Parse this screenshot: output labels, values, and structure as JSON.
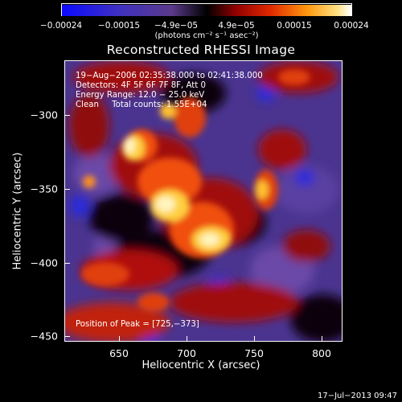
{
  "colorbar": {
    "tick_labels": [
      "−0.00024",
      "−0.00015",
      "−4.9e−05",
      "4.9e−05",
      "0.00015",
      "0.00024"
    ],
    "units": "(photons cm⁻² s⁻¹ asec⁻²)"
  },
  "title": "Reconstructed RHESSI Image",
  "info": {
    "line1": "19−Aug−2006 02:35:38.000 to 02:41:38.000",
    "line2": "Detectors: 4F 5F 6F 7F 8F, Att 0",
    "line3": "Energy Range: 12.0 − 25.0 keV",
    "line4": "Clean     Total counts: 1.55E+04",
    "peak": "Position of Peak = [725,−373]"
  },
  "axes": {
    "xlabel": "Heliocentric X (arcsec)",
    "ylabel": "Heliocentric Y (arcsec)",
    "xticks": [
      "650",
      "700",
      "750",
      "800"
    ],
    "yticks": [
      "−300",
      "−350",
      "−400",
      "−450"
    ]
  },
  "timestamp": "17−Jul−2013 09:47",
  "colors": {
    "colormap": [
      "#1a1aff",
      "#3a2a9a",
      "#5a3a8a",
      "#000000",
      "#8a0000",
      "#e03000",
      "#ff9000",
      "#ffe080",
      "#ffffff"
    ]
  }
}
